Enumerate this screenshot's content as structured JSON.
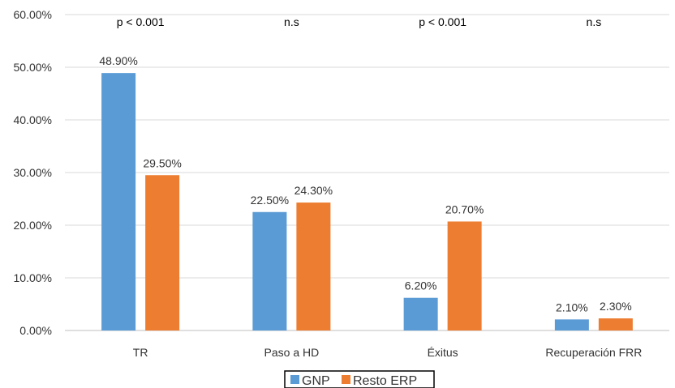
{
  "chart_data": {
    "type": "bar",
    "categories": [
      "TR",
      "Paso a HD",
      "Éxitus",
      "Recuperación FRR"
    ],
    "series": [
      {
        "name": "GNP",
        "values": [
          48.9,
          22.5,
          6.2,
          2.1
        ],
        "labels": [
          "48.90%",
          "22.50%",
          "6.20%",
          "2.10%"
        ],
        "color": "#5b9bd5"
      },
      {
        "name": "Resto ERP",
        "values": [
          29.5,
          24.3,
          20.7,
          2.3
        ],
        "labels": [
          "29.50%",
          "24.30%",
          "20.70%",
          "2.30%"
        ],
        "color": "#ed7d31"
      }
    ],
    "significance": [
      "p < 0.001",
      "n.s",
      "p < 0.001",
      "n.s"
    ],
    "yticks": [
      0,
      10,
      20,
      30,
      40,
      50,
      60
    ],
    "ytick_labels": [
      "0.00%",
      "10.00%",
      "20.00%",
      "30.00%",
      "40.00%",
      "50.00%",
      "60.00%"
    ],
    "ylim": [
      0,
      60
    ],
    "grid": true,
    "legend": "bottom",
    "title": "",
    "xlabel": "",
    "ylabel": ""
  }
}
